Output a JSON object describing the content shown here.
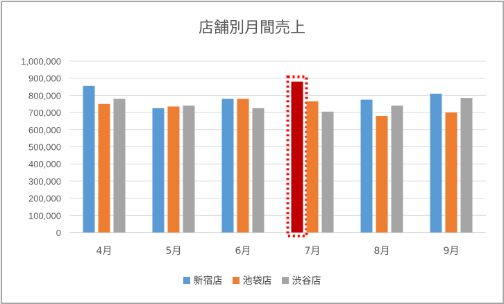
{
  "chart_data": {
    "type": "bar",
    "title": "店舗別月間売上",
    "xlabel": "",
    "ylabel": "",
    "categories": [
      "4月",
      "5月",
      "6月",
      "7月",
      "8月",
      "9月"
    ],
    "series": [
      {
        "name": "新宿店",
        "color": "#5b9bd5",
        "values": [
          855000,
          725000,
          780000,
          880000,
          775000,
          810000
        ]
      },
      {
        "name": "池袋店",
        "color": "#ed7d31",
        "values": [
          750000,
          735000,
          780000,
          765000,
          680000,
          700000
        ]
      },
      {
        "name": "渋谷店",
        "color": "#a5a5a5",
        "values": [
          780000,
          740000,
          725000,
          705000,
          740000,
          785000
        ]
      }
    ],
    "ylim": [
      0,
      1000000
    ],
    "ytick_step": 100000,
    "yticks": [
      "0",
      "100,000",
      "200,000",
      "300,000",
      "400,000",
      "500,000",
      "600,000",
      "700,000",
      "800,000",
      "900,000",
      "1,000,000"
    ],
    "grid": true,
    "legend_position": "bottom",
    "highlight": {
      "series": 0,
      "category": 3,
      "color": "#c00000",
      "outline": "dotted",
      "outline_color": "#ff0000"
    }
  }
}
